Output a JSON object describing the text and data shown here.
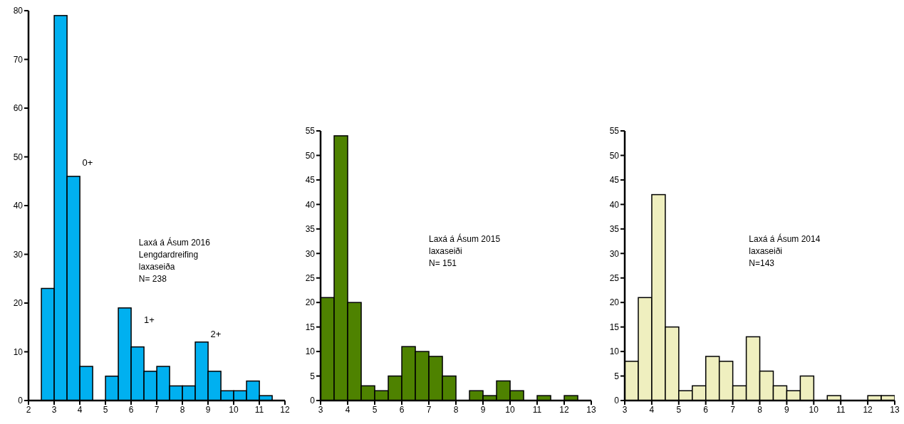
{
  "chart_data": [
    {
      "type": "histogram",
      "bins": [
        2.5,
        3,
        3.5,
        4,
        4.5,
        5,
        5.5,
        6,
        6.5,
        7,
        7.5,
        8,
        8.5,
        9,
        9.5,
        10,
        10.5,
        11,
        11.5
      ],
      "values": [
        23,
        79,
        46,
        7,
        0,
        5,
        19,
        11,
        6,
        7,
        3,
        3,
        12,
        6,
        2,
        2,
        4,
        1
      ],
      "color": "#00b0f0",
      "xlim": [
        2,
        12
      ],
      "xticks": [
        2,
        3,
        4,
        5,
        6,
        7,
        8,
        9,
        10,
        11,
        12
      ],
      "ylim": [
        0,
        80
      ],
      "yticks": [
        0,
        10,
        20,
        30,
        40,
        50,
        60,
        70,
        80
      ],
      "annotations": [
        "Laxá á Ásum 2016",
        "Lengdardreifing",
        "laxaseiða",
        "N= 238",
        "0+",
        "1+",
        "2+"
      ]
    },
    {
      "type": "histogram",
      "bins": [
        3,
        3.5,
        4,
        4.5,
        5,
        5.5,
        6,
        6.5,
        7,
        7.5,
        8,
        8.5,
        9,
        9.5,
        10,
        10.5,
        11,
        11.5,
        12,
        12.5
      ],
      "values": [
        21,
        54,
        20,
        3,
        2,
        5,
        11,
        10,
        9,
        5,
        0,
        2,
        1,
        4,
        2,
        0,
        1,
        0,
        1
      ],
      "color": "#4e8200",
      "xlim": [
        3,
        13
      ],
      "xticks": [
        3,
        4,
        5,
        6,
        7,
        8,
        9,
        10,
        11,
        12,
        13
      ],
      "ylim": [
        0,
        55
      ],
      "yticks": [
        0,
        5,
        10,
        15,
        20,
        25,
        30,
        35,
        40,
        45,
        50,
        55
      ],
      "annotations": [
        "Laxá á Ásum 2015",
        "laxaseiði",
        "N= 151"
      ]
    },
    {
      "type": "histogram",
      "bins": [
        3,
        3.5,
        4,
        4.5,
        5,
        5.5,
        6,
        6.5,
        7,
        7.5,
        8,
        8.5,
        9,
        9.5,
        10,
        10.5,
        11,
        11.5,
        12,
        12.5,
        13
      ],
      "values": [
        8,
        21,
        42,
        15,
        2,
        3,
        9,
        8,
        3,
        13,
        6,
        3,
        2,
        5,
        0,
        1,
        0,
        0,
        1,
        1
      ],
      "color": "#efefbf",
      "xlim": [
        3,
        13
      ],
      "xticks": [
        3,
        4,
        5,
        6,
        7,
        8,
        9,
        10,
        11,
        12,
        13
      ],
      "ylim": [
        0,
        55
      ],
      "yticks": [
        0,
        5,
        10,
        15,
        20,
        25,
        30,
        35,
        40,
        45,
        50,
        55
      ],
      "annotations": [
        "Laxá á Ásum 2014",
        "laxaseiði",
        "N=143"
      ]
    }
  ]
}
